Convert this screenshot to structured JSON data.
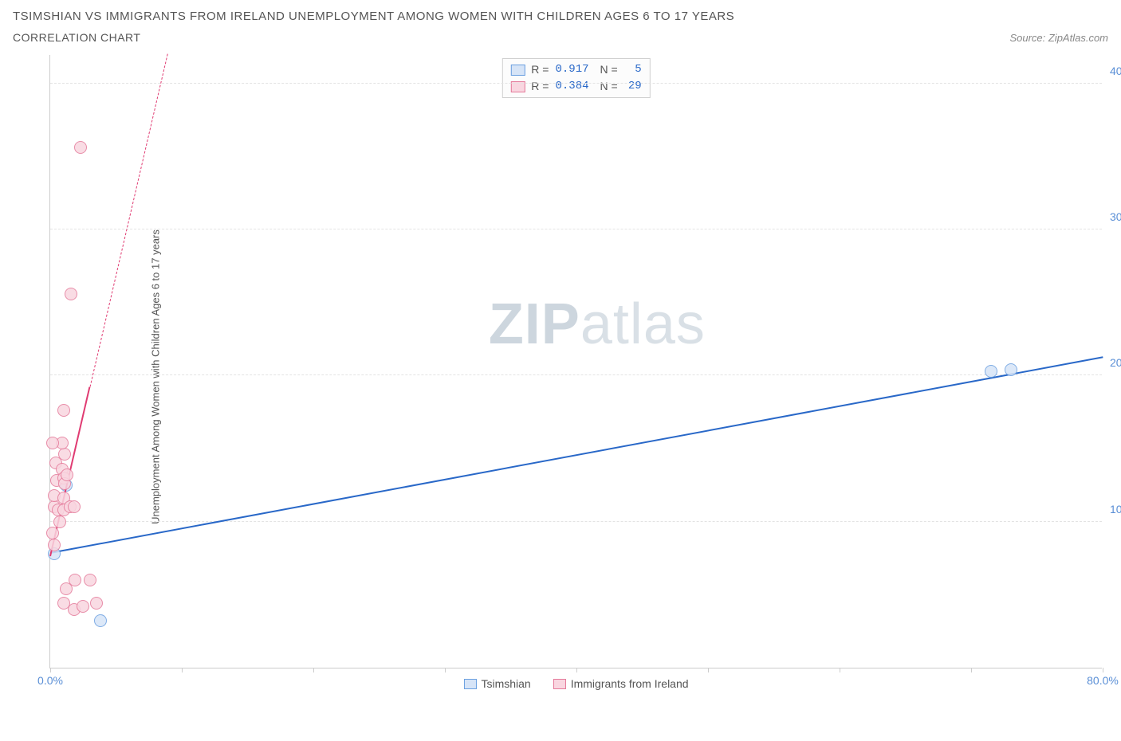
{
  "title": "TSIMSHIAN VS IMMIGRANTS FROM IRELAND UNEMPLOYMENT AMONG WOMEN WITH CHILDREN AGES 6 TO 17 YEARS",
  "subtitle": "CORRELATION CHART",
  "source": "Source: ZipAtlas.com",
  "yaxis_label": "Unemployment Among Women with Children Ages 6 to 17 years",
  "watermark_a": "ZIP",
  "watermark_b": "atlas",
  "chart": {
    "type": "scatter",
    "xlim": [
      0,
      80
    ],
    "ylim": [
      0,
      42
    ],
    "yticks": [
      {
        "v": 10,
        "label": "10.0%"
      },
      {
        "v": 20,
        "label": "20.0%"
      },
      {
        "v": 30,
        "label": "30.0%"
      },
      {
        "v": 40,
        "label": "40.0%"
      }
    ],
    "xticks": [
      {
        "v": 0,
        "label": "0.0%"
      },
      {
        "v": 10,
        "label": ""
      },
      {
        "v": 20,
        "label": ""
      },
      {
        "v": 30,
        "label": ""
      },
      {
        "v": 40,
        "label": ""
      },
      {
        "v": 50,
        "label": ""
      },
      {
        "v": 60,
        "label": ""
      },
      {
        "v": 70,
        "label": ""
      },
      {
        "v": 80,
        "label": "80.0%"
      }
    ],
    "series": [
      {
        "key": "tsimshian",
        "label": "Tsimshian",
        "color_stroke": "#6a9fe0",
        "color_fill": "#d6e4f7",
        "marker_r": 8,
        "points": [
          {
            "x": 0.3,
            "y": 7.8
          },
          {
            "x": 1.2,
            "y": 12.5
          },
          {
            "x": 3.8,
            "y": 3.2
          },
          {
            "x": 71.5,
            "y": 20.3
          },
          {
            "x": 73.0,
            "y": 20.4
          }
        ],
        "trend": {
          "color": "#2968c8",
          "width": 2.5,
          "x1": 0,
          "y1": 7.8,
          "x2": 80,
          "y2": 21.2,
          "dash_after_x": 80
        }
      },
      {
        "key": "ireland",
        "label": "Immigrants from Ireland",
        "color_stroke": "#e47a9a",
        "color_fill": "#f9d6e0",
        "marker_r": 8,
        "points": [
          {
            "x": 0.3,
            "y": 11.0
          },
          {
            "x": 0.5,
            "y": 12.8
          },
          {
            "x": 0.4,
            "y": 14.0
          },
          {
            "x": 0.3,
            "y": 11.8
          },
          {
            "x": 0.6,
            "y": 10.8
          },
          {
            "x": 0.2,
            "y": 9.2
          },
          {
            "x": 0.3,
            "y": 8.4
          },
          {
            "x": 0.9,
            "y": 13.6
          },
          {
            "x": 1.0,
            "y": 13.0
          },
          {
            "x": 1.0,
            "y": 11.6
          },
          {
            "x": 1.1,
            "y": 12.6
          },
          {
            "x": 1.0,
            "y": 10.8
          },
          {
            "x": 0.7,
            "y": 10.0
          },
          {
            "x": 1.1,
            "y": 14.6
          },
          {
            "x": 0.9,
            "y": 15.4
          },
          {
            "x": 0.2,
            "y": 15.4
          },
          {
            "x": 1.0,
            "y": 17.6
          },
          {
            "x": 1.3,
            "y": 13.2
          },
          {
            "x": 1.5,
            "y": 11.0
          },
          {
            "x": 1.8,
            "y": 11.0
          },
          {
            "x": 1.9,
            "y": 6.0
          },
          {
            "x": 3.0,
            "y": 6.0
          },
          {
            "x": 1.8,
            "y": 4.0
          },
          {
            "x": 1.2,
            "y": 5.4
          },
          {
            "x": 1.0,
            "y": 4.4
          },
          {
            "x": 2.5,
            "y": 4.2
          },
          {
            "x": 3.5,
            "y": 4.4
          },
          {
            "x": 1.6,
            "y": 25.6
          },
          {
            "x": 2.3,
            "y": 35.6
          }
        ],
        "trend": {
          "color": "#e03b72",
          "width": 2.5,
          "x1": 0,
          "y1": 7.6,
          "x2": 3.0,
          "y2": 19.2,
          "dash_after_x": 3.0,
          "dash_x2": 12.0,
          "dash_y2": 54
        }
      }
    ]
  },
  "legend_center": [
    {
      "swatch_fill": "#d6e4f7",
      "swatch_stroke": "#6a9fe0",
      "r_label": "R =",
      "r": "0.917",
      "n_label": "N =",
      "n": "5"
    },
    {
      "swatch_fill": "#f9d6e0",
      "swatch_stroke": "#e47a9a",
      "r_label": "R =",
      "r": "0.384",
      "n_label": "N =",
      "n": "29"
    }
  ],
  "legend_bottom": [
    {
      "swatch_fill": "#d6e4f7",
      "swatch_stroke": "#6a9fe0",
      "label": "Tsimshian"
    },
    {
      "swatch_fill": "#f9d6e0",
      "swatch_stroke": "#e47a9a",
      "label": "Immigrants from Ireland"
    }
  ]
}
